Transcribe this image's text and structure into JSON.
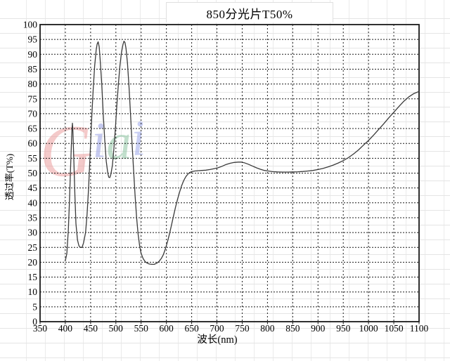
{
  "title": "850分光片T50%",
  "axis": {
    "y_title": "透过率(T%)",
    "x_title": "波长(nm)"
  },
  "watermark": {
    "letters": [
      {
        "char": "G",
        "color": "#ec9f9f"
      },
      {
        "char": "i",
        "color": "#99a0e2"
      },
      {
        "char": "a",
        "color": "#8fc6a4"
      },
      {
        "char": "i",
        "color": "#9da9ec"
      }
    ]
  },
  "colors": {
    "curve": "#3a3a3a",
    "grid_dash": "#1c1c1c",
    "border": "#1a1a1a"
  },
  "chart_data": {
    "type": "line",
    "title": "850分光片T50%",
    "xlabel": "波长(nm)",
    "ylabel": "透过率(T%)",
    "xlim": [
      350,
      1100
    ],
    "ylim": [
      0,
      100
    ],
    "x_ticks": [
      350,
      400,
      450,
      500,
      550,
      600,
      650,
      700,
      750,
      800,
      850,
      900,
      950,
      1000,
      1050,
      1100
    ],
    "y_ticks": [
      0,
      5,
      10,
      15,
      20,
      25,
      30,
      35,
      40,
      45,
      50,
      55,
      60,
      65,
      70,
      75,
      80,
      85,
      90,
      95,
      100
    ],
    "grid": "dashed interior gridlines at every tick; legend none",
    "series": [
      {
        "name": "transmittance",
        "points": [
          [
            400,
            20.5
          ],
          [
            403,
            23
          ],
          [
            406,
            31
          ],
          [
            408,
            40
          ],
          [
            410,
            50
          ],
          [
            412,
            60
          ],
          [
            413,
            64.5
          ],
          [
            414,
            66.8
          ],
          [
            415,
            64
          ],
          [
            417,
            53
          ],
          [
            419,
            42
          ],
          [
            421,
            33
          ],
          [
            424,
            27.5
          ],
          [
            427,
            25.5
          ],
          [
            430,
            25
          ],
          [
            433,
            25
          ],
          [
            436,
            26.5
          ],
          [
            440,
            30
          ],
          [
            443,
            36
          ],
          [
            446,
            45
          ],
          [
            449,
            56
          ],
          [
            452,
            68
          ],
          [
            455,
            78
          ],
          [
            458,
            86
          ],
          [
            461,
            91.5
          ],
          [
            463,
            93.5
          ],
          [
            465,
            94.2
          ],
          [
            467,
            92.5
          ],
          [
            469,
            88
          ],
          [
            472,
            80
          ],
          [
            475,
            70
          ],
          [
            478,
            61
          ],
          [
            481,
            54
          ],
          [
            484,
            50
          ],
          [
            486,
            48.6
          ],
          [
            488,
            48.5
          ],
          [
            490,
            49.5
          ],
          [
            493,
            52.5
          ],
          [
            496,
            58
          ],
          [
            499,
            65
          ],
          [
            502,
            73
          ],
          [
            505,
            80
          ],
          [
            508,
            86
          ],
          [
            511,
            90.5
          ],
          [
            514,
            93.3
          ],
          [
            516,
            94.4
          ],
          [
            518,
            94
          ],
          [
            520,
            92
          ],
          [
            523,
            87
          ],
          [
            526,
            79
          ],
          [
            529,
            70
          ],
          [
            532,
            60
          ],
          [
            535,
            51
          ],
          [
            538,
            42.5
          ],
          [
            541,
            35
          ],
          [
            544,
            29.5
          ],
          [
            547,
            25.5
          ],
          [
            550,
            23
          ],
          [
            554,
            21.2
          ],
          [
            558,
            20.2
          ],
          [
            562,
            19.7
          ],
          [
            566,
            19.4
          ],
          [
            571,
            19.3
          ],
          [
            576,
            19.3
          ],
          [
            581,
            19.7
          ],
          [
            586,
            20.4
          ],
          [
            590,
            21.3
          ],
          [
            594,
            22.6
          ],
          [
            598,
            24.5
          ],
          [
            602,
            26.8
          ],
          [
            606,
            29.5
          ],
          [
            610,
            32.5
          ],
          [
            614,
            35.5
          ],
          [
            618,
            38.5
          ],
          [
            622,
            41.2
          ],
          [
            626,
            43.6
          ],
          [
            630,
            45.7
          ],
          [
            634,
            47.4
          ],
          [
            638,
            48.7
          ],
          [
            642,
            49.6
          ],
          [
            646,
            50.2
          ],
          [
            650,
            50.5
          ],
          [
            656,
            50.7
          ],
          [
            662,
            50.8
          ],
          [
            670,
            50.9
          ],
          [
            678,
            51
          ],
          [
            686,
            51.2
          ],
          [
            694,
            51.5
          ],
          [
            702,
            51.8
          ],
          [
            710,
            52.3
          ],
          [
            718,
            52.9
          ],
          [
            726,
            53.3
          ],
          [
            734,
            53.6
          ],
          [
            742,
            53.7
          ],
          [
            748,
            53.7
          ],
          [
            754,
            53.5
          ],
          [
            762,
            53
          ],
          [
            770,
            52.4
          ],
          [
            778,
            51.8
          ],
          [
            786,
            51.3
          ],
          [
            794,
            50.9
          ],
          [
            802,
            50.7
          ],
          [
            810,
            50.5
          ],
          [
            820,
            50.4
          ],
          [
            830,
            50.35
          ],
          [
            840,
            50.35
          ],
          [
            850,
            50.4
          ],
          [
            860,
            50.45
          ],
          [
            870,
            50.55
          ],
          [
            880,
            50.7
          ],
          [
            890,
            50.9
          ],
          [
            900,
            51.2
          ],
          [
            910,
            51.6
          ],
          [
            920,
            52.1
          ],
          [
            930,
            52.7
          ],
          [
            940,
            53.4
          ],
          [
            950,
            54.2
          ],
          [
            960,
            55.2
          ],
          [
            970,
            56.4
          ],
          [
            980,
            57.8
          ],
          [
            990,
            59.4
          ],
          [
            1000,
            61
          ],
          [
            1010,
            62.8
          ],
          [
            1020,
            64.7
          ],
          [
            1030,
            66.6
          ],
          [
            1040,
            68.6
          ],
          [
            1050,
            70.5
          ],
          [
            1060,
            72.4
          ],
          [
            1070,
            74.2
          ],
          [
            1080,
            75.7
          ],
          [
            1090,
            76.8
          ],
          [
            1100,
            77.5
          ]
        ]
      }
    ]
  }
}
